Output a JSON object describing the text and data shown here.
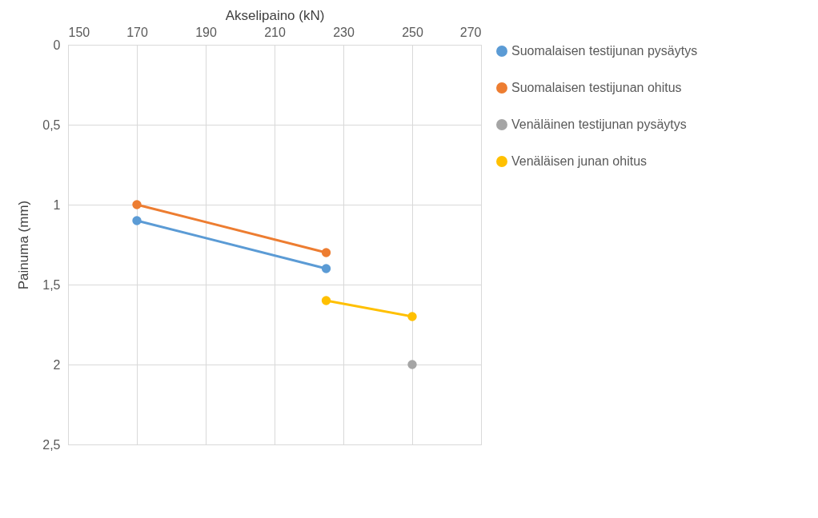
{
  "chart_data": {
    "type": "line",
    "xlabel": "Akselipaino (kN)",
    "ylabel": "Painuma (mm)",
    "xlim": [
      150,
      270
    ],
    "xticks": [
      150,
      170,
      190,
      210,
      230,
      250,
      270
    ],
    "ylim": [
      2.5,
      0
    ],
    "yticks": [
      0,
      {
        "value": 0.5,
        "label": "0,5"
      },
      1,
      {
        "value": 1.5,
        "label": "1,5"
      },
      2,
      {
        "value": 2.5,
        "label": "2,5"
      }
    ],
    "grid": true,
    "legend": "right",
    "marker": "circle",
    "line_style": "solid",
    "series": [
      {
        "name": "Suomalaisen testijunan pysäytys",
        "color": "#5b9bd5",
        "x": [
          170,
          225
        ],
        "values": [
          1.1,
          1.4
        ]
      },
      {
        "name": "Suomalaisen testijunan ohitus",
        "color": "#ed7d31",
        "x": [
          170,
          225
        ],
        "values": [
          1.0,
          1.3
        ]
      },
      {
        "name": "Venäläinen testijunan pysäytys",
        "color": "#a5a5a5",
        "x": [
          250
        ],
        "values": [
          2.0
        ]
      },
      {
        "name": "Venäläisen junan ohitus",
        "color": "#ffc000",
        "x": [
          225,
          250
        ],
        "values": [
          1.6,
          1.7
        ]
      }
    ]
  }
}
